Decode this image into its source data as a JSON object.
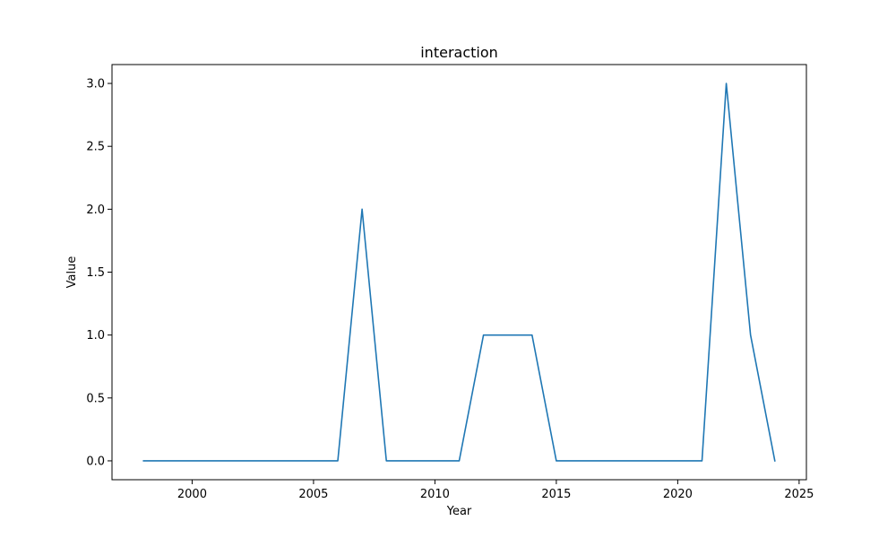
{
  "chart_data": {
    "type": "line",
    "title": "interaction",
    "xlabel": "Year",
    "ylabel": "Value",
    "x": [
      1998,
      1999,
      2000,
      2001,
      2002,
      2003,
      2004,
      2005,
      2006,
      2007,
      2008,
      2009,
      2010,
      2011,
      2012,
      2013,
      2014,
      2015,
      2016,
      2017,
      2018,
      2019,
      2020,
      2021,
      2022,
      2023,
      2024
    ],
    "series": [
      {
        "values": [
          0,
          0,
          0,
          0,
          0,
          0,
          0,
          0,
          0,
          2,
          0,
          0,
          0,
          0,
          1,
          1,
          1,
          0,
          0,
          0,
          0,
          0,
          0,
          0,
          3,
          1,
          0
        ],
        "color": "#1f77b4"
      }
    ],
    "xlim": [
      1996.7,
      2025.3
    ],
    "ylim": [
      -0.15,
      3.15
    ],
    "xticks": [
      2000,
      2005,
      2010,
      2015,
      2020,
      2025
    ],
    "xtick_labels": [
      "2000",
      "2005",
      "2010",
      "2015",
      "2020",
      "2025"
    ],
    "yticks": [
      0,
      0.5,
      1,
      1.5,
      2,
      2.5,
      3
    ],
    "ytick_labels": [
      "0.0",
      "0.5",
      "1.0",
      "1.5",
      "2.0",
      "2.5",
      "3.0"
    ],
    "grid": false,
    "legend": "none"
  }
}
